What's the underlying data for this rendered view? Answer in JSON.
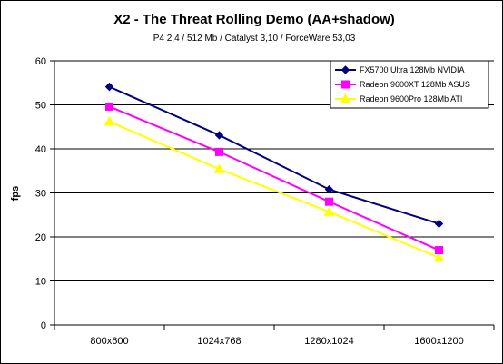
{
  "chart_data": {
    "type": "line",
    "title": "X2 - The Threat Rolling Demo (AA+shadow)",
    "subtitle": "P4 2,4 / 512 Mb / Catalyst 3,10 / ForceWare 53,03",
    "xlabel": "",
    "ylabel": "fps",
    "categories": [
      "800x600",
      "1024x768",
      "1280x1024",
      "1600x1200"
    ],
    "ylim": [
      0,
      60
    ],
    "yticks": [
      0,
      10,
      20,
      30,
      40,
      50,
      60
    ],
    "grid": true,
    "legend_position": "top-right",
    "series": [
      {
        "name": "FX5700 Ultra 128Mb NVIDIA",
        "values": [
          54.1,
          43.1,
          30.8,
          23.0
        ],
        "color": "#000080",
        "marker": "diamond"
      },
      {
        "name": "Radeon 9600XT 128Mb ASUS",
        "values": [
          49.6,
          39.3,
          28.0,
          17.0
        ],
        "color": "#ff00ff",
        "marker": "square"
      },
      {
        "name": "Radeon 9600Pro 128Mb ATI",
        "values": [
          46.2,
          35.4,
          25.7,
          15.3
        ],
        "color": "#ffff00",
        "marker": "triangle"
      }
    ]
  }
}
